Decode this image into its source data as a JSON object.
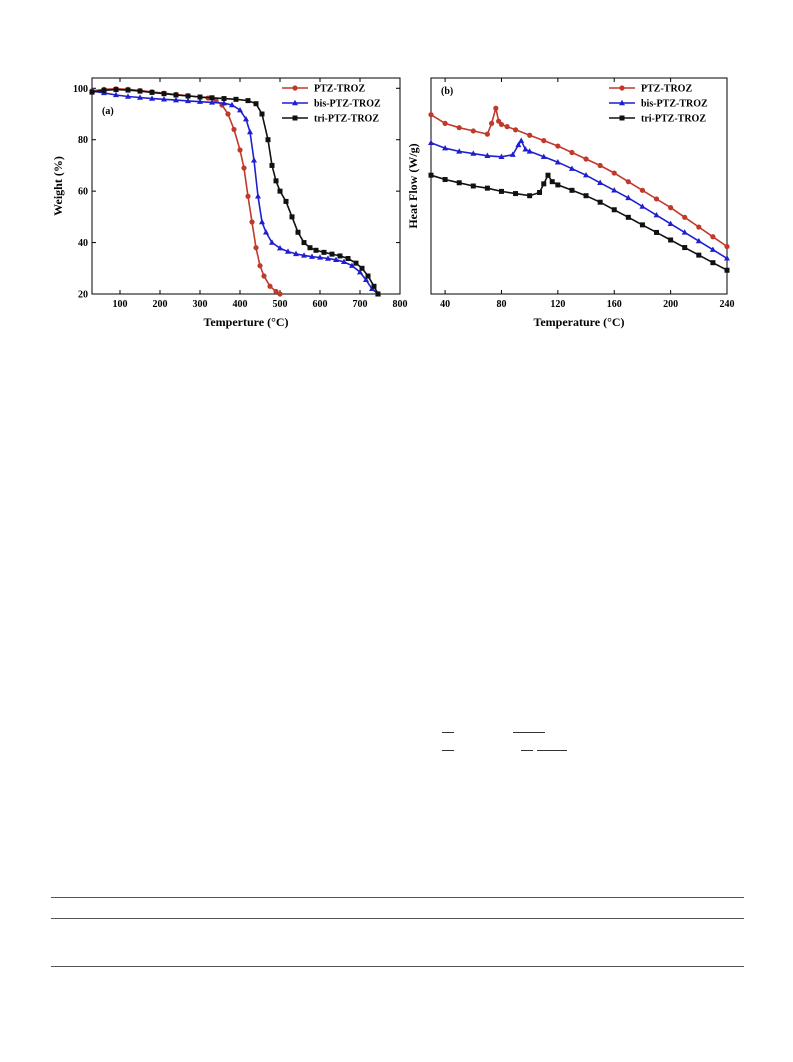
{
  "figure": {
    "panels": [
      {
        "chart_data": {
          "type": "line",
          "panel_label": "(a)",
          "title": "",
          "xlabel": "Temperture (°C)",
          "ylabel": "Weight (%)",
          "xlim": [
            30,
            800
          ],
          "ylim": [
            20,
            104
          ],
          "xticks": [
            100,
            200,
            300,
            400,
            500,
            600,
            700,
            800
          ],
          "yticks": [
            20,
            40,
            60,
            80,
            100
          ],
          "legend_position": "top-right",
          "grid": false,
          "series": [
            {
              "name": "PTZ-TROZ",
              "color": "#c0392b",
              "marker": "circle",
              "x": [
                30,
                60,
                90,
                120,
                150,
                180,
                210,
                240,
                270,
                300,
                320,
                340,
                355,
                370,
                385,
                400,
                410,
                420,
                430,
                440,
                450,
                460,
                475,
                490,
                500
              ],
              "y": [
                99,
                99.6,
                99.8,
                99.6,
                99.1,
                98.6,
                98.1,
                97.6,
                97.1,
                96.6,
                96.2,
                95.3,
                93.5,
                90,
                84,
                76,
                69,
                58,
                48,
                38,
                31,
                27,
                23,
                21,
                20
              ]
            },
            {
              "name": "bis-PTZ-TROZ",
              "color": "#1f1fd0",
              "marker": "triangle",
              "x": [
                30,
                60,
                90,
                120,
                150,
                180,
                210,
                240,
                270,
                300,
                330,
                360,
                380,
                400,
                415,
                425,
                435,
                445,
                455,
                465,
                480,
                500,
                520,
                540,
                560,
                580,
                600,
                620,
                640,
                660,
                680,
                700,
                715,
                730,
                745
              ],
              "y": [
                99,
                98.2,
                97.4,
                96.8,
                96.4,
                96,
                95.7,
                95.4,
                95.1,
                94.8,
                94.5,
                94.2,
                93.5,
                91.5,
                88,
                83,
                72,
                58,
                48,
                44,
                40,
                37.8,
                36.5,
                35.6,
                35,
                34.5,
                34.2,
                33.8,
                33.3,
                32.5,
                31,
                28.5,
                25.5,
                22,
                20
              ]
            },
            {
              "name": "tri-PTZ-TROZ",
              "color": "#111111",
              "marker": "square",
              "x": [
                30,
                60,
                90,
                120,
                150,
                180,
                210,
                240,
                270,
                300,
                330,
                360,
                390,
                420,
                440,
                455,
                470,
                480,
                490,
                500,
                515,
                530,
                545,
                560,
                575,
                590,
                610,
                630,
                650,
                670,
                690,
                705,
                720,
                735,
                745
              ],
              "y": [
                98.5,
                99.2,
                99.5,
                99.3,
                98.9,
                98.4,
                97.9,
                97.4,
                97,
                96.6,
                96.3,
                96,
                95.7,
                95.2,
                94,
                90,
                80,
                70,
                64,
                60,
                56,
                50,
                44,
                40,
                38,
                37,
                36.2,
                35.5,
                34.8,
                33.8,
                32,
                30,
                27,
                23,
                20
              ]
            }
          ]
        }
      },
      {
        "chart_data": {
          "type": "line",
          "panel_label": "(b)",
          "title": "",
          "xlabel": "Temperature (°C)",
          "ylabel": "Heat Flow (W/g)",
          "xlim": [
            30,
            240
          ],
          "ylim": [
            0,
            100
          ],
          "xticks": [
            40,
            80,
            120,
            160,
            200,
            240
          ],
          "yticks": [],
          "legend_position": "top-right",
          "grid": false,
          "series": [
            {
              "name": "PTZ-TROZ",
              "color": "#c0392b",
              "marker": "circle",
              "x": [
                30,
                40,
                50,
                60,
                70,
                73,
                76,
                78,
                80,
                84,
                90,
                100,
                110,
                120,
                130,
                140,
                150,
                160,
                170,
                180,
                190,
                200,
                210,
                220,
                230,
                240
              ],
              "y": [
                83,
                79,
                77,
                75.5,
                74,
                79,
                86,
                80,
                78.5,
                77.5,
                76,
                73.5,
                71,
                68.5,
                65.5,
                62.5,
                59.5,
                56,
                52,
                48,
                44,
                40,
                35.5,
                31,
                26.5,
                22
              ]
            },
            {
              "name": "bis-PTZ-TROZ",
              "color": "#1f1fd0",
              "marker": "triangle",
              "x": [
                30,
                40,
                50,
                60,
                70,
                80,
                88,
                92,
                94,
                97,
                100,
                110,
                120,
                130,
                140,
                150,
                160,
                170,
                180,
                190,
                200,
                210,
                220,
                230,
                240
              ],
              "y": [
                70,
                67.5,
                66,
                65,
                64,
                63.5,
                64.5,
                69,
                71,
                67,
                66,
                63.5,
                61,
                58,
                55,
                51.5,
                48,
                44.5,
                40.5,
                36.5,
                32.5,
                28.5,
                24.5,
                20.5,
                16.5
              ]
            },
            {
              "name": "tri-PTZ-TROZ",
              "color": "#111111",
              "marker": "square",
              "x": [
                30,
                40,
                50,
                60,
                70,
                80,
                90,
                100,
                107,
                110,
                113,
                116,
                120,
                130,
                140,
                150,
                160,
                170,
                180,
                190,
                200,
                210,
                220,
                230,
                240
              ],
              "y": [
                55,
                53,
                51.5,
                50,
                49,
                47.5,
                46.5,
                45.5,
                47,
                51,
                55,
                52,
                50.5,
                48,
                45.5,
                42.5,
                39,
                35.5,
                32,
                28.5,
                25,
                21.5,
                18,
                14.5,
                11
              ]
            }
          ]
        }
      }
    ]
  }
}
